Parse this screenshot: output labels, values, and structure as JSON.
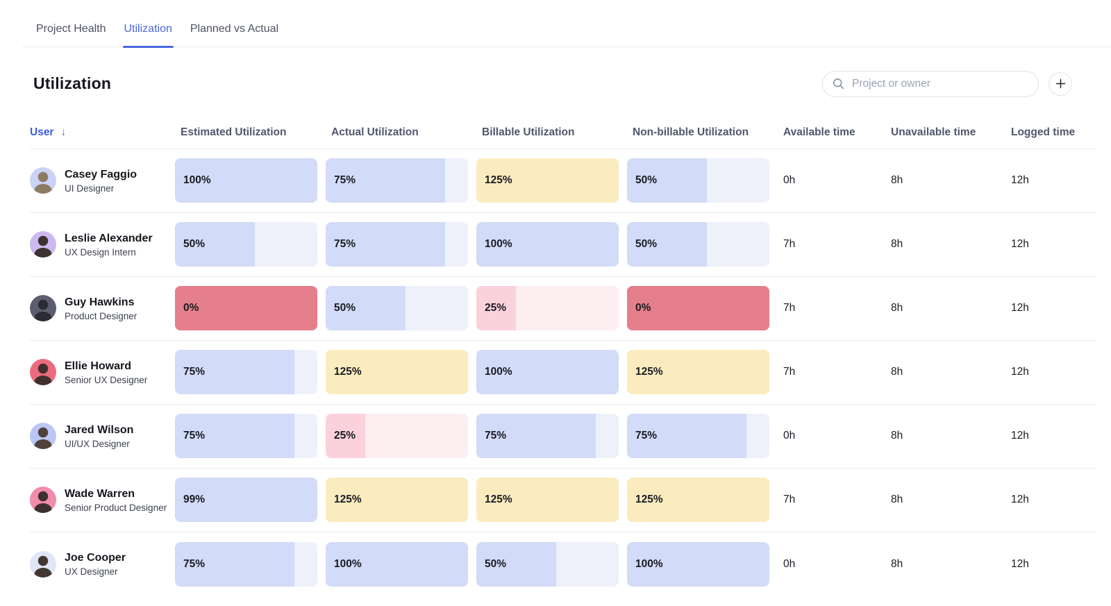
{
  "tabs": {
    "items": [
      {
        "label": "Project Health",
        "active": false
      },
      {
        "label": "Utilization",
        "active": true
      },
      {
        "label": "Planned vs Actual",
        "active": false
      }
    ]
  },
  "page": {
    "title": "Utilization"
  },
  "search": {
    "placeholder": "Project or owner"
  },
  "icons": {
    "search": "search-icon",
    "add": "plus-icon",
    "sort": "arrow-down-icon"
  },
  "colors": {
    "accent_blue": "#4a67dd",
    "bar_normal_fill": "#d2dbf7",
    "bar_normal_track": "#eef1fa",
    "bar_over": "#fbecbf",
    "bar_zero": "#e57f8b",
    "bar_low_fill": "#fbd1db",
    "bar_low_track": "#fdeef2"
  },
  "table": {
    "sort_indicator": "↓",
    "columns": [
      {
        "label": "User",
        "sorted": true
      },
      {
        "label": "Estimated Utilization",
        "sorted": false
      },
      {
        "label": "Actual Utilization",
        "sorted": false
      },
      {
        "label": "Billable Utilization",
        "sorted": false
      },
      {
        "label": "Non-billable Utilization",
        "sorted": false
      },
      {
        "label": "Available time",
        "sorted": false
      },
      {
        "label": "Unavailable time",
        "sorted": false
      },
      {
        "label": "Logged time",
        "sorted": false
      }
    ],
    "rows": [
      {
        "name": "Casey Faggio",
        "role": "UI Designer",
        "avatar_color": "#c8d3f5",
        "avatar_fg": "#8d7a63",
        "bars": [
          {
            "value": 100,
            "label": "100%"
          },
          {
            "value": 75,
            "label": "75%"
          },
          {
            "value": 125,
            "label": "125%"
          },
          {
            "value": 50,
            "label": "50%"
          }
        ],
        "available": "0h",
        "unavailable": "8h",
        "logged": "12h"
      },
      {
        "name": "Leslie Alexander",
        "role": "UX Design Intern",
        "avatar_color": "#cdb9f0",
        "avatar_fg": "#3e3230",
        "bars": [
          {
            "value": 50,
            "label": "50%"
          },
          {
            "value": 75,
            "label": "75%"
          },
          {
            "value": 100,
            "label": "100%"
          },
          {
            "value": 50,
            "label": "50%"
          }
        ],
        "available": "7h",
        "unavailable": "8h",
        "logged": "12h"
      },
      {
        "name": "Guy Hawkins",
        "role": "Product Designer",
        "avatar_color": "#5d5d70",
        "avatar_fg": "#2a2b34",
        "bars": [
          {
            "value": 0,
            "label": "0%"
          },
          {
            "value": 50,
            "label": "50%"
          },
          {
            "value": 25,
            "label": "25%"
          },
          {
            "value": 0,
            "label": "0%"
          }
        ],
        "available": "7h",
        "unavailable": "8h",
        "logged": "12h"
      },
      {
        "name": "Ellie Howard",
        "role": "Senior UX Designer",
        "avatar_color": "#ed6b7e",
        "avatar_fg": "#42302e",
        "bars": [
          {
            "value": 75,
            "label": "75%"
          },
          {
            "value": 125,
            "label": "125%"
          },
          {
            "value": 100,
            "label": "100%"
          },
          {
            "value": 125,
            "label": "125%"
          }
        ],
        "available": "7h",
        "unavailable": "8h",
        "logged": "12h"
      },
      {
        "name": "Jared Wilson",
        "role": "UI/UX Designer",
        "avatar_color": "#bac7f3",
        "avatar_fg": "#50413a",
        "bars": [
          {
            "value": 75,
            "label": "75%"
          },
          {
            "value": 25,
            "label": "25%"
          },
          {
            "value": 75,
            "label": "75%"
          },
          {
            "value": 75,
            "label": "75%"
          }
        ],
        "available": "0h",
        "unavailable": "8h",
        "logged": "12h"
      },
      {
        "name": "Wade Warren",
        "role": "Senior Product Designer",
        "avatar_color": "#f18cab",
        "avatar_fg": "#3b312e",
        "bars": [
          {
            "value": 99,
            "label": "99%"
          },
          {
            "value": 125,
            "label": "125%"
          },
          {
            "value": 125,
            "label": "125%"
          },
          {
            "value": 125,
            "label": "125%"
          }
        ],
        "available": "7h",
        "unavailable": "8h",
        "logged": "12h"
      },
      {
        "name": "Joe Cooper",
        "role": "UX Designer",
        "avatar_color": "#e0e5f8",
        "avatar_fg": "#433731",
        "bars": [
          {
            "value": 75,
            "label": "75%"
          },
          {
            "value": 100,
            "label": "100%"
          },
          {
            "value": 50,
            "label": "50%"
          },
          {
            "value": 100,
            "label": "100%"
          }
        ],
        "available": "0h",
        "unavailable": "8h",
        "logged": "12h"
      }
    ]
  }
}
